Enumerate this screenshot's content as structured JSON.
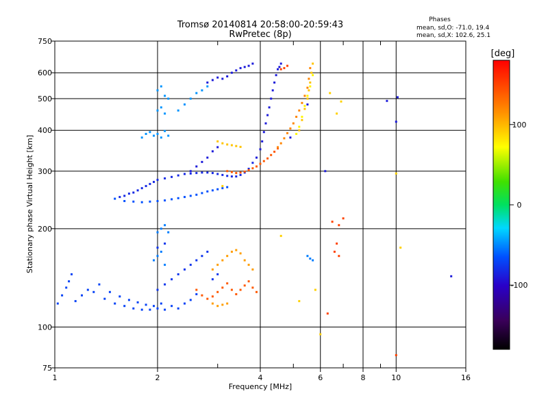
{
  "chart_data": {
    "type": "scatter",
    "title": "Tromsø 20140814 20:58:00-20:59:43",
    "subtitle": "RwPretec (8p)",
    "stats": {
      "heading": "Phases",
      "line1": "mean, sd,O: -71.0, 19.4",
      "line2": "mean, sd,X: 102.6, 25.1"
    },
    "xlabel": "Frequency [MHz]",
    "ylabel": "Stationary phase Virtual Height [km]",
    "x_scale": "log",
    "y_scale": "log",
    "xlim": [
      1,
      16
    ],
    "ylim": [
      75,
      750
    ],
    "x_ticks": [
      1,
      2,
      4,
      6,
      8,
      10,
      16
    ],
    "x_tick_labels": [
      "1",
      "2",
      "4",
      "6",
      "8",
      "10",
      "16"
    ],
    "x_minor_ticks": [
      3,
      5,
      7,
      9
    ],
    "y_ticks": [
      75,
      100,
      200,
      300,
      400,
      500,
      600,
      750
    ],
    "y_tick_labels": [
      "75",
      "100",
      "200",
      "300",
      "400",
      "500",
      "600",
      "750"
    ],
    "grid": true,
    "colorbar": {
      "label": "[deg]",
      "range": [
        -180,
        180
      ],
      "ticks": [
        100,
        0,
        -100
      ],
      "tick_labels": [
        "100",
        "0",
        "-100"
      ]
    },
    "point_series": [
      {
        "name": "",
        "phase": -95,
        "points": [
          [
            1.02,
            118
          ],
          [
            1.05,
            125
          ],
          [
            1.08,
            132
          ],
          [
            1.1,
            138
          ],
          [
            1.12,
            145
          ],
          [
            1.15,
            120
          ],
          [
            1.2,
            125
          ],
          [
            1.25,
            130
          ],
          [
            1.3,
            128
          ],
          [
            1.35,
            135
          ],
          [
            1.4,
            122
          ],
          [
            1.45,
            128
          ],
          [
            1.5,
            118
          ],
          [
            1.55,
            124
          ],
          [
            1.6,
            116
          ],
          [
            1.65,
            121
          ],
          [
            1.7,
            114
          ],
          [
            1.75,
            119
          ],
          [
            1.8,
            113
          ],
          [
            1.85,
            117
          ],
          [
            1.9,
            113
          ],
          [
            1.95,
            116
          ],
          [
            2.0,
            114
          ],
          [
            2.05,
            118
          ],
          [
            2.1,
            113
          ],
          [
            2.2,
            116
          ],
          [
            2.3,
            114
          ],
          [
            2.4,
            118
          ],
          [
            2.5,
            121
          ],
          [
            2.6,
            126
          ]
        ]
      },
      {
        "name": "",
        "phase": -105,
        "points": [
          [
            1.55,
            250
          ],
          [
            1.6,
            252
          ],
          [
            1.65,
            256
          ],
          [
            1.7,
            258
          ],
          [
            1.75,
            262
          ],
          [
            1.8,
            266
          ],
          [
            1.85,
            270
          ],
          [
            1.9,
            274
          ],
          [
            1.95,
            278
          ],
          [
            2.0,
            282
          ],
          [
            2.1,
            285
          ],
          [
            2.2,
            288
          ],
          [
            2.3,
            291
          ],
          [
            2.4,
            294
          ],
          [
            2.5,
            295
          ],
          [
            2.6,
            296
          ],
          [
            2.7,
            297
          ],
          [
            2.8,
            297
          ],
          [
            2.9,
            296
          ],
          [
            3.0,
            294
          ],
          [
            3.1,
            292
          ],
          [
            3.2,
            290
          ],
          [
            3.3,
            289
          ],
          [
            3.4,
            289
          ],
          [
            3.5,
            292
          ],
          [
            3.6,
            297
          ],
          [
            3.7,
            305
          ],
          [
            3.8,
            318
          ]
        ]
      },
      {
        "name": "",
        "phase": -90,
        "points": [
          [
            1.5,
            247
          ],
          [
            1.6,
            243
          ],
          [
            1.7,
            242
          ],
          [
            1.8,
            241
          ],
          [
            1.9,
            242
          ],
          [
            2.0,
            243
          ],
          [
            2.1,
            244
          ],
          [
            2.2,
            246
          ],
          [
            2.3,
            248
          ],
          [
            2.4,
            250
          ],
          [
            2.5,
            252
          ],
          [
            2.6,
            254
          ],
          [
            2.7,
            257
          ],
          [
            2.8,
            260
          ],
          [
            2.9,
            262
          ],
          [
            3.0,
            264
          ],
          [
            3.1,
            266
          ],
          [
            3.2,
            268
          ]
        ]
      },
      {
        "name": "",
        "phase": -110,
        "points": [
          [
            3.9,
            330
          ],
          [
            4.0,
            350
          ],
          [
            4.05,
            370
          ],
          [
            4.1,
            395
          ],
          [
            4.15,
            420
          ],
          [
            4.2,
            445
          ],
          [
            4.25,
            470
          ],
          [
            4.3,
            500
          ],
          [
            4.35,
            530
          ],
          [
            4.4,
            560
          ],
          [
            4.45,
            590
          ],
          [
            4.5,
            615
          ],
          [
            4.55,
            625
          ],
          [
            4.6,
            640
          ]
        ]
      },
      {
        "name": "",
        "phase": -75,
        "points": [
          [
            1.8,
            380
          ],
          [
            1.85,
            390
          ],
          [
            1.9,
            395
          ],
          [
            1.95,
            385
          ],
          [
            2.0,
            390
          ],
          [
            2.05,
            380
          ],
          [
            2.1,
            398
          ],
          [
            2.15,
            385
          ],
          [
            2.0,
            460
          ],
          [
            2.05,
            470
          ],
          [
            2.1,
            450
          ],
          [
            2.0,
            530
          ],
          [
            2.05,
            545
          ],
          [
            2.1,
            510
          ],
          [
            2.15,
            500
          ],
          [
            2.3,
            460
          ],
          [
            2.4,
            480
          ],
          [
            2.5,
            500
          ],
          [
            2.6,
            520
          ],
          [
            2.7,
            530
          ],
          [
            2.8,
            545
          ]
        ]
      },
      {
        "name": "",
        "phase": -110,
        "points": [
          [
            2.8,
            560
          ],
          [
            2.9,
            570
          ],
          [
            3.0,
            580
          ],
          [
            3.1,
            575
          ],
          [
            3.2,
            585
          ],
          [
            3.3,
            600
          ],
          [
            3.4,
            610
          ],
          [
            3.5,
            620
          ],
          [
            3.6,
            625
          ],
          [
            3.7,
            630
          ],
          [
            3.8,
            640
          ],
          [
            2.5,
            300
          ],
          [
            2.6,
            310
          ],
          [
            2.7,
            320
          ],
          [
            2.8,
            330
          ],
          [
            2.9,
            345
          ],
          [
            3.0,
            355
          ]
        ]
      },
      {
        "name": "",
        "phase": 140,
        "points": [
          [
            3.2,
            300
          ],
          [
            3.3,
            298
          ],
          [
            3.4,
            296
          ],
          [
            3.5,
            297
          ],
          [
            3.6,
            299
          ],
          [
            3.7,
            302
          ],
          [
            3.8,
            306
          ],
          [
            3.9,
            310
          ],
          [
            4.0,
            316
          ],
          [
            4.1,
            322
          ],
          [
            4.2,
            328
          ],
          [
            4.3,
            336
          ],
          [
            4.4,
            344
          ],
          [
            4.5,
            352
          ]
        ]
      },
      {
        "name": "",
        "phase": 120,
        "points": [
          [
            4.5,
            355
          ],
          [
            4.6,
            365
          ],
          [
            4.7,
            378
          ],
          [
            4.8,
            392
          ],
          [
            4.9,
            405
          ],
          [
            5.0,
            420
          ],
          [
            5.1,
            440
          ],
          [
            5.2,
            460
          ],
          [
            5.3,
            485
          ],
          [
            5.4,
            510
          ],
          [
            5.5,
            540
          ],
          [
            5.55,
            575
          ],
          [
            5.6,
            620
          ]
        ]
      },
      {
        "name": "",
        "phase": 95,
        "points": [
          [
            5.2,
            400
          ],
          [
            5.3,
            430
          ],
          [
            5.4,
            465
          ],
          [
            5.5,
            500
          ],
          [
            5.55,
            530
          ],
          [
            5.6,
            560
          ],
          [
            5.65,
            600
          ],
          [
            5.7,
            640
          ],
          [
            3.0,
            370
          ],
          [
            3.1,
            365
          ],
          [
            3.2,
            362
          ],
          [
            3.3,
            360
          ],
          [
            3.4,
            358
          ],
          [
            3.5,
            356
          ]
        ]
      },
      {
        "name": "",
        "phase": 75,
        "points": [
          [
            5.1,
            390
          ],
          [
            5.2,
            410
          ],
          [
            5.3,
            440
          ],
          [
            5.4,
            475
          ],
          [
            5.5,
            510
          ],
          [
            5.6,
            545
          ],
          [
            5.7,
            590
          ]
        ]
      },
      {
        "name": "",
        "phase": 140,
        "points": [
          [
            2.6,
            130
          ],
          [
            2.7,
            125
          ],
          [
            2.8,
            122
          ],
          [
            2.9,
            124
          ],
          [
            3.0,
            128
          ],
          [
            3.1,
            132
          ],
          [
            3.2,
            136
          ],
          [
            3.3,
            130
          ],
          [
            3.4,
            126
          ],
          [
            3.5,
            130
          ],
          [
            3.6,
            134
          ],
          [
            3.7,
            138
          ],
          [
            3.8,
            132
          ],
          [
            3.9,
            128
          ]
        ]
      },
      {
        "name": "",
        "phase": 110,
        "points": [
          [
            2.9,
            118
          ],
          [
            3.0,
            116
          ],
          [
            3.1,
            117
          ],
          [
            3.2,
            118
          ],
          [
            2.9,
            150
          ],
          [
            3.0,
            155
          ],
          [
            3.1,
            160
          ],
          [
            3.2,
            165
          ],
          [
            3.3,
            170
          ],
          [
            3.4,
            172
          ],
          [
            3.5,
            168
          ],
          [
            3.6,
            160
          ],
          [
            3.7,
            155
          ],
          [
            3.8,
            150
          ]
        ]
      },
      {
        "name": "",
        "phase": -100,
        "points": [
          [
            2.4,
            150
          ],
          [
            2.5,
            155
          ],
          [
            2.6,
            160
          ],
          [
            2.7,
            165
          ],
          [
            2.8,
            170
          ],
          [
            2.9,
            140
          ],
          [
            3.0,
            145
          ],
          [
            2.0,
            130
          ],
          [
            2.1,
            135
          ],
          [
            2.2,
            140
          ],
          [
            2.3,
            145
          ],
          [
            2.0,
            175
          ],
          [
            2.1,
            180
          ]
        ]
      },
      {
        "name": "",
        "phase": -80,
        "points": [
          [
            2.0,
            195
          ],
          [
            2.05,
            200
          ],
          [
            2.1,
            205
          ],
          [
            2.15,
            195
          ],
          [
            1.95,
            160
          ],
          [
            2.0,
            165
          ],
          [
            2.05,
            170
          ],
          [
            2.1,
            155
          ],
          [
            5.5,
            165
          ],
          [
            5.6,
            162
          ],
          [
            5.7,
            160
          ]
        ]
      },
      {
        "name": "",
        "phase": 150,
        "points": [
          [
            6.5,
            210
          ],
          [
            6.8,
            205
          ],
          [
            7.0,
            215
          ],
          [
            6.6,
            170
          ],
          [
            6.8,
            165
          ],
          [
            10.0,
            82
          ],
          [
            6.3,
            110
          ],
          [
            6.7,
            180
          ],
          [
            4.6,
            615
          ],
          [
            4.7,
            620
          ],
          [
            4.8,
            630
          ]
        ]
      },
      {
        "name": "",
        "phase": 90,
        "points": [
          [
            6.0,
            95
          ],
          [
            5.8,
            130
          ],
          [
            6.4,
            520
          ],
          [
            6.9,
            490
          ],
          [
            6.7,
            450
          ],
          [
            10.3,
            175
          ],
          [
            10.0,
            295
          ],
          [
            4.6,
            190
          ],
          [
            3.1,
            270
          ],
          [
            5.2,
            120
          ]
        ]
      },
      {
        "name": "",
        "phase": -110,
        "points": [
          [
            9.4,
            492
          ],
          [
            10.0,
            425
          ],
          [
            10.1,
            505
          ],
          [
            14.5,
            143
          ],
          [
            6.2,
            300
          ],
          [
            5.5,
            480
          ],
          [
            4.9,
            380
          ]
        ]
      }
    ]
  }
}
